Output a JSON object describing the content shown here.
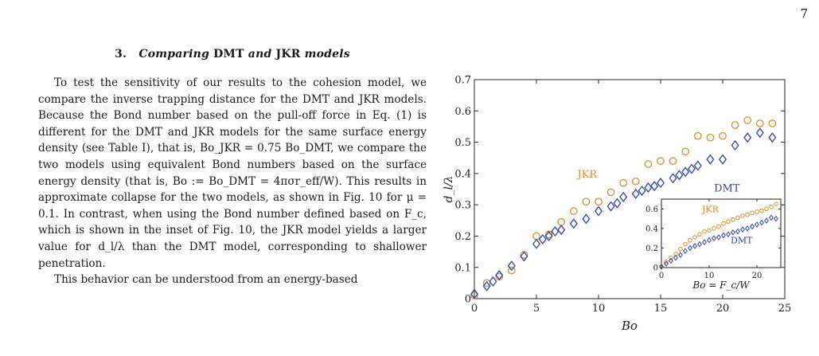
{
  "page": {
    "number": "7"
  },
  "section": {
    "number": "3.",
    "title_pre": "Comparing",
    "title_dmt": "DMT",
    "title_mid": "and",
    "title_jkr": "JKR",
    "title_post": "models"
  },
  "paragraphs": [
    "To test the sensitivity of our results to the cohesion model, we compare the inverse trapping distance for the DMT and JKR models. Because the Bond number based on the pull-off force in Eq. (1) is different for the DMT and JKR models for the same surface energy density (see Table I), that is, Bo_JKR = 0.75 Bo_DMT, we compare the two models using equivalent Bond numbers based on the surface energy density (that is, Bo := Bo_DMT = 4πσr_eff/W). This results in approximate collapse for the two models, as shown in Fig. 10 for μ = 0.1. In contrast, when using the Bond number defined based on F_c, which is shown in the inset of Fig. 10, the JKR model yields a larger value for d_l/λ than the DMT model, corresponding to shallower penetration.",
    "This behavior can be understood from an energy-based"
  ],
  "figure": {
    "colors": {
      "jkr": "#D98C2B",
      "dmt": "#2D44A8",
      "axis": "#222222"
    },
    "main_label_jkr": "JKR",
    "main_label_dmt": "DMT",
    "inset_label_jkr": "JKR",
    "inset_label_dmt": "DMT"
  },
  "chart_data": [
    {
      "type": "scatter",
      "xlabel": "Bo",
      "ylabel": "d_l/λ",
      "xlim": [
        0,
        25
      ],
      "ylim": [
        0,
        0.7
      ],
      "xticks": [
        "0",
        "5",
        "10",
        "15",
        "20",
        "25"
      ],
      "yticks": [
        "0",
        "0.1",
        "0.2",
        "0.3",
        "0.4",
        "0.5",
        "0.6",
        "0.7"
      ],
      "grid": false,
      "series": [
        {
          "name": "JKR",
          "marker": "circle",
          "x": [
            0,
            1,
            2,
            3,
            4,
            5,
            6,
            7,
            8,
            9,
            10,
            11,
            12,
            13,
            14,
            15,
            16,
            17,
            18,
            19,
            20,
            21,
            22,
            23,
            24
          ],
          "y": [
            0.01,
            0.05,
            0.07,
            0.09,
            0.14,
            0.2,
            0.205,
            0.245,
            0.28,
            0.31,
            0.31,
            0.34,
            0.37,
            0.375,
            0.43,
            0.44,
            0.44,
            0.47,
            0.52,
            0.515,
            0.52,
            0.555,
            0.57,
            0.56,
            0.56
          ]
        },
        {
          "name": "DMT",
          "marker": "diamond",
          "x": [
            0,
            1,
            1.5,
            2,
            3,
            4,
            5,
            5.5,
            6,
            6.5,
            7,
            8,
            9,
            10,
            11,
            11.5,
            12,
            13,
            13.5,
            14,
            14.5,
            15,
            16,
            16.5,
            17,
            17.5,
            18,
            19,
            20,
            21,
            22,
            23,
            24
          ],
          "y": [
            0.015,
            0.04,
            0.055,
            0.075,
            0.105,
            0.135,
            0.175,
            0.19,
            0.2,
            0.215,
            0.22,
            0.24,
            0.255,
            0.28,
            0.295,
            0.305,
            0.325,
            0.335,
            0.345,
            0.355,
            0.36,
            0.37,
            0.385,
            0.395,
            0.405,
            0.415,
            0.425,
            0.445,
            0.445,
            0.49,
            0.515,
            0.53,
            0.515
          ]
        }
      ]
    },
    {
      "type": "scatter",
      "xlabel": "Bo = F_c/W",
      "xlim": [
        0,
        25
      ],
      "ylim": [
        0,
        0.7
      ],
      "xticks": [
        "0",
        "10",
        "20"
      ],
      "yticks": [
        "0",
        "0.2",
        "0.4",
        "0.6"
      ],
      "grid": false,
      "series": [
        {
          "name": "JKR",
          "marker": "circle",
          "x": [
            0,
            1,
            2,
            3,
            4,
            5,
            6,
            7,
            8,
            9,
            10,
            11,
            12,
            13,
            14,
            15,
            16,
            17,
            18,
            19,
            20,
            21,
            22,
            23,
            24
          ],
          "y": [
            0.01,
            0.06,
            0.1,
            0.14,
            0.19,
            0.24,
            0.28,
            0.31,
            0.34,
            0.37,
            0.38,
            0.4,
            0.42,
            0.45,
            0.47,
            0.49,
            0.51,
            0.53,
            0.54,
            0.56,
            0.57,
            0.58,
            0.6,
            0.62,
            0.65
          ]
        },
        {
          "name": "DMT",
          "marker": "diamond",
          "x": [
            0,
            1,
            2,
            3,
            4,
            5,
            6,
            7,
            8,
            9,
            10,
            11,
            12,
            13,
            14,
            15,
            16,
            17,
            18,
            19,
            20,
            21,
            22,
            23,
            24
          ],
          "y": [
            0.01,
            0.04,
            0.07,
            0.1,
            0.13,
            0.17,
            0.2,
            0.22,
            0.24,
            0.26,
            0.28,
            0.3,
            0.31,
            0.33,
            0.34,
            0.36,
            0.37,
            0.39,
            0.4,
            0.42,
            0.44,
            0.46,
            0.48,
            0.51,
            0.5
          ]
        }
      ]
    }
  ]
}
